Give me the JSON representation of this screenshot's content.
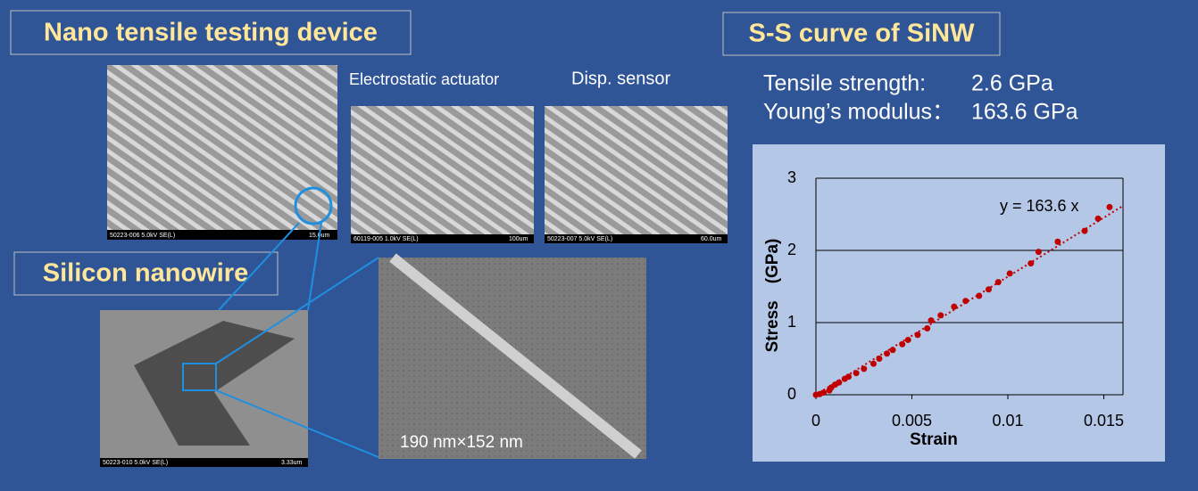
{
  "labels": {
    "device": "Nano tensile testing device",
    "actuator": "Electrostatic actuator",
    "sensor": "Disp. sensor",
    "nanowire": "Silicon nanowire",
    "size": "190 nm×152 nm",
    "curve": "S-S curve of SiNW",
    "strength_label": "Tensile strength:",
    "strength_value": "2.6 GPa",
    "modulus_label": "Young’s modulus：",
    "modulus_value": "163.6 GPa"
  },
  "sem_captions": [
    {
      "info": "50223-006 5.0kV SE(L)",
      "scale": "15.0um"
    },
    {
      "info": "60119-005 1.0kV SE(L)",
      "scale": "100um"
    },
    {
      "info": "50223-007 5.0kV SE(L)",
      "scale": "60.0um"
    },
    {
      "info": "50223-010 5.0kV SE(L)",
      "scale": "3.33um"
    }
  ],
  "chart_data": {
    "type": "scatter",
    "x_label": "Strain",
    "y_label": "Stress　(GPa)",
    "color": "#c00000",
    "annotation": "y = 163.6 x",
    "trendline_slope": 163.6,
    "x": [
      0,
      0.0002,
      0.0004,
      0.0007,
      0.0008,
      0.001,
      0.0012,
      0.0015,
      0.0017,
      0.0021,
      0.0025,
      0.003,
      0.0033,
      0.0037,
      0.004,
      0.0045,
      0.0048,
      0.0053,
      0.0058,
      0.006,
      0.0065,
      0.0072,
      0.0078,
      0.0085,
      0.009,
      0.0095,
      0.0101,
      0.0112,
      0.0116,
      0.0126,
      0.014,
      0.0147,
      0.0153
    ],
    "values": [
      0,
      0.01,
      0.03,
      0.06,
      0.1,
      0.14,
      0.17,
      0.22,
      0.25,
      0.3,
      0.36,
      0.43,
      0.5,
      0.57,
      0.62,
      0.7,
      0.76,
      0.83,
      0.92,
      1.03,
      1.1,
      1.22,
      1.3,
      1.37,
      1.46,
      1.56,
      1.68,
      1.82,
      1.98,
      2.12,
      2.27,
      2.44,
      2.6
    ],
    "xlim": [
      0,
      0.016
    ],
    "xticks": [
      0,
      0.005,
      0.01,
      0.015
    ],
    "ylim": [
      0,
      3
    ],
    "yticks": [
      0,
      1,
      2,
      3
    ],
    "grid": true
  }
}
